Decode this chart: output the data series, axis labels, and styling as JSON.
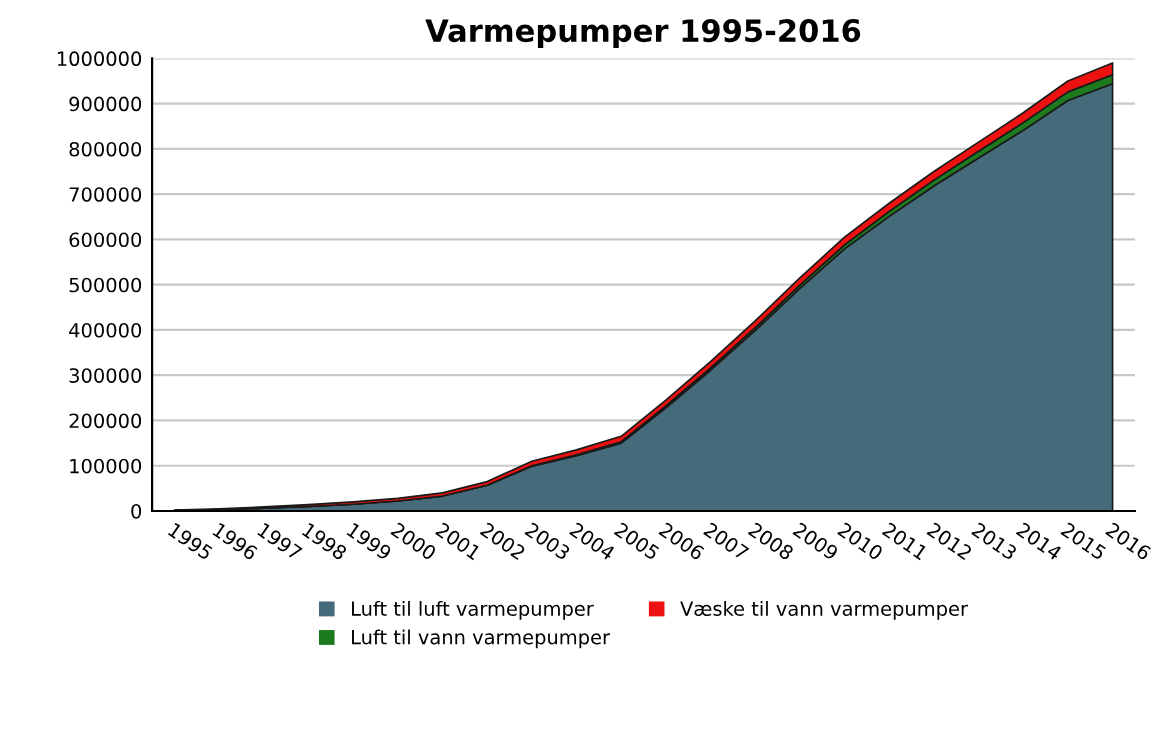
{
  "chart_data": {
    "type": "area",
    "stacked": true,
    "title": "Varmepumper 1995-2016",
    "categories": [
      "1995",
      "1996",
      "1997",
      "1998",
      "1999",
      "2000",
      "2001",
      "2002",
      "2003",
      "2004",
      "2005",
      "2006",
      "2007",
      "2008",
      "2009",
      "2010",
      "2011",
      "2012",
      "2013",
      "2014",
      "2015",
      "2016"
    ],
    "series": [
      {
        "name": "Luft til luft varmepumper",
        "color": "#456b7a",
        "values": [
          1000,
          3000,
          6000,
          10000,
          15000,
          22000,
          33000,
          57000,
          99000,
          122000,
          150000,
          228000,
          311000,
          399000,
          492000,
          579000,
          651000,
          718000,
          780000,
          841000,
          907000,
          944000
        ]
      },
      {
        "name": "Luft til vann varmepumper",
        "color": "#1e7a1e",
        "values": [
          0,
          0,
          0,
          0,
          0,
          0,
          0,
          0,
          1000,
          2000,
          3000,
          4000,
          5000,
          6000,
          7000,
          9000,
          11000,
          13000,
          15000,
          17000,
          19000,
          20000
        ]
      },
      {
        "name": "Væske til vann varmepumper",
        "color": "#ee1111",
        "values": [
          1000,
          2000,
          3000,
          4000,
          5000,
          6000,
          7000,
          8000,
          10000,
          11000,
          12000,
          13000,
          14000,
          15000,
          16000,
          17000,
          18000,
          19000,
          20000,
          22000,
          24000,
          26000
        ]
      }
    ],
    "ylim": [
      0,
      1000000
    ],
    "yticks": [
      0,
      100000,
      200000,
      300000,
      400000,
      500000,
      600000,
      700000,
      800000,
      900000,
      1000000
    ],
    "grid": "y",
    "legend": "bottom"
  }
}
